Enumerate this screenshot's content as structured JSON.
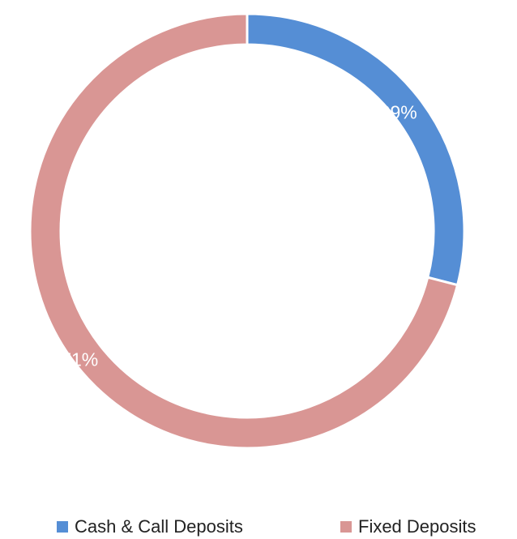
{
  "chart_data": {
    "type": "pie",
    "categories": [
      "Cash & Call Deposits",
      "Fixed Deposits"
    ],
    "values": [
      29,
      71
    ],
    "value_labels": [
      "29%",
      "71%"
    ],
    "colors": [
      "#558ed5",
      "#d99694"
    ],
    "legend": "bottom"
  }
}
